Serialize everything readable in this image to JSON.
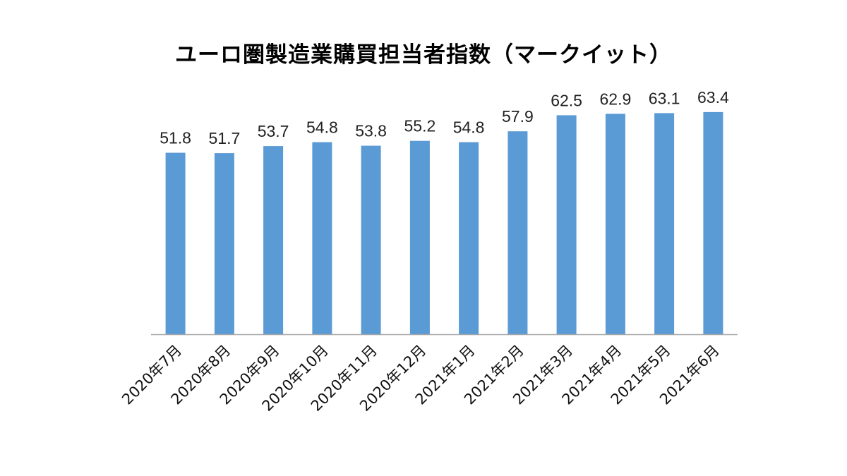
{
  "chart_data": {
    "type": "bar",
    "title": "ユーロ圏製造業購買担当者指数（マークイット）",
    "xlabel": "",
    "ylabel": "",
    "ylim": [
      0,
      65
    ],
    "grid": false,
    "legend": "none",
    "categories": [
      "2020年7月",
      "2020年8月",
      "2020年9月",
      "2020年10月",
      "2020年11月",
      "2020年12月",
      "2021年1月",
      "2021年2月",
      "2021年3月",
      "2021年4月",
      "2021年5月",
      "2021年6月"
    ],
    "values": [
      51.8,
      51.7,
      53.7,
      54.8,
      53.8,
      55.2,
      54.8,
      57.9,
      62.5,
      62.9,
      63.1,
      63.4
    ],
    "value_labels": [
      "51.8",
      "51.7",
      "53.7",
      "54.8",
      "53.8",
      "55.2",
      "54.8",
      "57.9",
      "62.5",
      "62.9",
      "63.1",
      "63.4"
    ],
    "bar_color": "#5b9bd5",
    "axis_color": "#a6a6a6"
  }
}
